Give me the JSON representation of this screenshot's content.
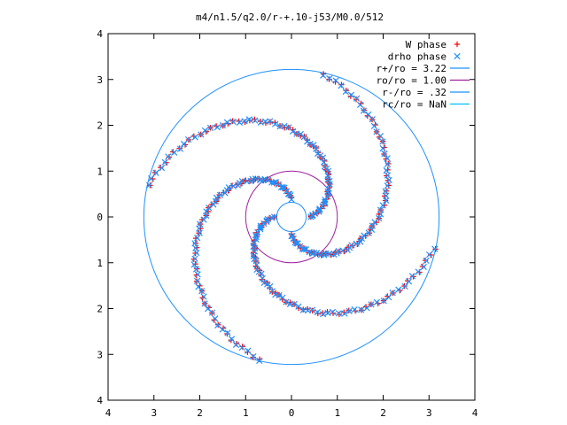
{
  "chart_data": {
    "type": "scatter",
    "title": "m4/n1.5/q2.0/r-+.10-j53/M0.0/512",
    "xlim": [
      -4,
      4
    ],
    "ylim": [
      -4,
      4
    ],
    "xticks": [
      -4,
      -3,
      -2,
      -1,
      0,
      1,
      2,
      3,
      4
    ],
    "yticks": [
      -4,
      -3,
      -2,
      -1,
      0,
      1,
      2,
      3,
      4
    ],
    "xtick_labels": [
      "4",
      "3",
      "2",
      "1",
      "0",
      "1",
      "2",
      "3",
      "4"
    ],
    "ytick_labels": [
      "4",
      "3",
      "2",
      "1",
      "0",
      "1",
      "2",
      "3",
      "4"
    ],
    "grid": false,
    "legend_position": "top-right",
    "series": [
      {
        "name": "W phase",
        "marker": "plus",
        "color": "#ff0000",
        "arm_offset_deg": 0
      },
      {
        "name": "drho phase",
        "marker": "cross",
        "color": "#1e90ff",
        "arm_offset_deg": 0
      }
    ],
    "circles": [
      {
        "name": "r+/ro = 3.22",
        "radius": 3.22,
        "color": "#1e90ff"
      },
      {
        "name": "ro/ro = 1.00",
        "radius": 1.0,
        "color": "#a020a0"
      },
      {
        "name": "r-/ro = .32",
        "radius": 0.32,
        "color": "#1e90ff"
      },
      {
        "name": "rc/ro = NaN",
        "radius": null,
        "color": "#00bfff"
      }
    ],
    "spiral_arms": 4,
    "spiral_r_range": [
      0.4,
      3.2
    ],
    "spiral_winding_deg_per_unit_r": 60
  }
}
